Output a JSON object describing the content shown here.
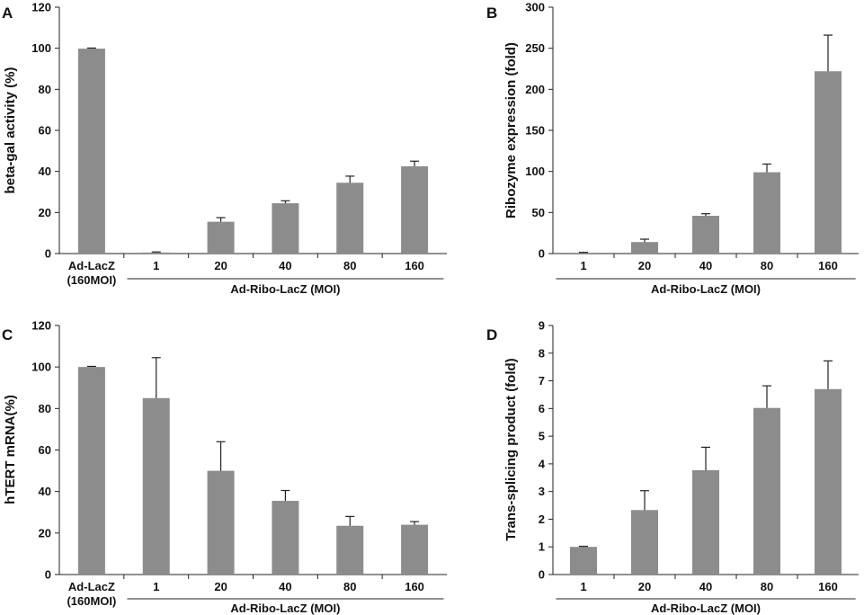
{
  "chart_data": [
    {
      "type": "bar",
      "panel": "A",
      "ylabel": "beta-gal activity (%)",
      "ylim": [
        0,
        120
      ],
      "yticks": [
        0,
        20,
        40,
        60,
        80,
        100,
        120
      ],
      "categories": [
        "Ad-LacZ (160MOI)",
        "1",
        "20",
        "40",
        "80",
        "160"
      ],
      "category_lines": [
        [
          "Ad-LacZ",
          "(160MOI)"
        ],
        [
          "1"
        ],
        [
          "20"
        ],
        [
          "40"
        ],
        [
          "80"
        ],
        [
          "160"
        ]
      ],
      "values": [
        99.8,
        0.5,
        15.5,
        24.5,
        34.5,
        42.5
      ],
      "errors": [
        0.3,
        0.3,
        2.0,
        1.2,
        3.2,
        2.5
      ],
      "group_label": "Ad-Ribo-LacZ (MOI)",
      "group_start": 1,
      "bar_color": "#8c8c8c"
    },
    {
      "type": "bar",
      "panel": "B",
      "ylabel": "Ribozyme expression (fold)",
      "ylim": [
        0,
        300
      ],
      "yticks": [
        0,
        50,
        100,
        150,
        200,
        250,
        300
      ],
      "categories": [
        "1",
        "20",
        "40",
        "80",
        "160"
      ],
      "category_lines": [
        [
          "1"
        ],
        [
          "20"
        ],
        [
          "40"
        ],
        [
          "80"
        ],
        [
          "160"
        ]
      ],
      "values": [
        1,
        14,
        46,
        99,
        222
      ],
      "errors": [
        0.5,
        3.5,
        2.5,
        10,
        44
      ],
      "group_label": "Ad-Ribo-LacZ (MOI)",
      "group_start": 0,
      "bar_color": "#8c8c8c"
    },
    {
      "type": "bar",
      "panel": "C",
      "ylabel": "hTERT mRNA(%)",
      "ylim": [
        0,
        120
      ],
      "yticks": [
        0,
        20,
        40,
        60,
        80,
        100,
        120
      ],
      "categories": [
        "Ad-LacZ (160MOI)",
        "1",
        "20",
        "40",
        "80",
        "160"
      ],
      "category_lines": [
        [
          "Ad-LacZ",
          "(160MOI)"
        ],
        [
          "1"
        ],
        [
          "20"
        ],
        [
          "40"
        ],
        [
          "80"
        ],
        [
          "160"
        ]
      ],
      "values": [
        100,
        85,
        50,
        35.5,
        23.5,
        24
      ],
      "errors": [
        0.3,
        19.5,
        14,
        5,
        4.5,
        1.5
      ],
      "group_label": "Ad-Ribo-LacZ (MOI)",
      "group_start": 1,
      "bar_color": "#8c8c8c"
    },
    {
      "type": "bar",
      "panel": "D",
      "ylabel": "Trans-splicing product (fold)",
      "ylim": [
        0,
        9
      ],
      "yticks": [
        0,
        1,
        2,
        3,
        4,
        5,
        6,
        7,
        8,
        9
      ],
      "categories": [
        "1",
        "20",
        "40",
        "80",
        "160"
      ],
      "category_lines": [
        [
          "1"
        ],
        [
          "20"
        ],
        [
          "40"
        ],
        [
          "80"
        ],
        [
          "160"
        ]
      ],
      "values": [
        1.0,
        2.33,
        3.77,
        6.02,
        6.7
      ],
      "errors": [
        0.02,
        0.7,
        0.83,
        0.8,
        1.02
      ],
      "group_label": "Ad-Ribo-LacZ (MOI)",
      "group_start": 0,
      "bar_color": "#8c8c8c"
    }
  ]
}
